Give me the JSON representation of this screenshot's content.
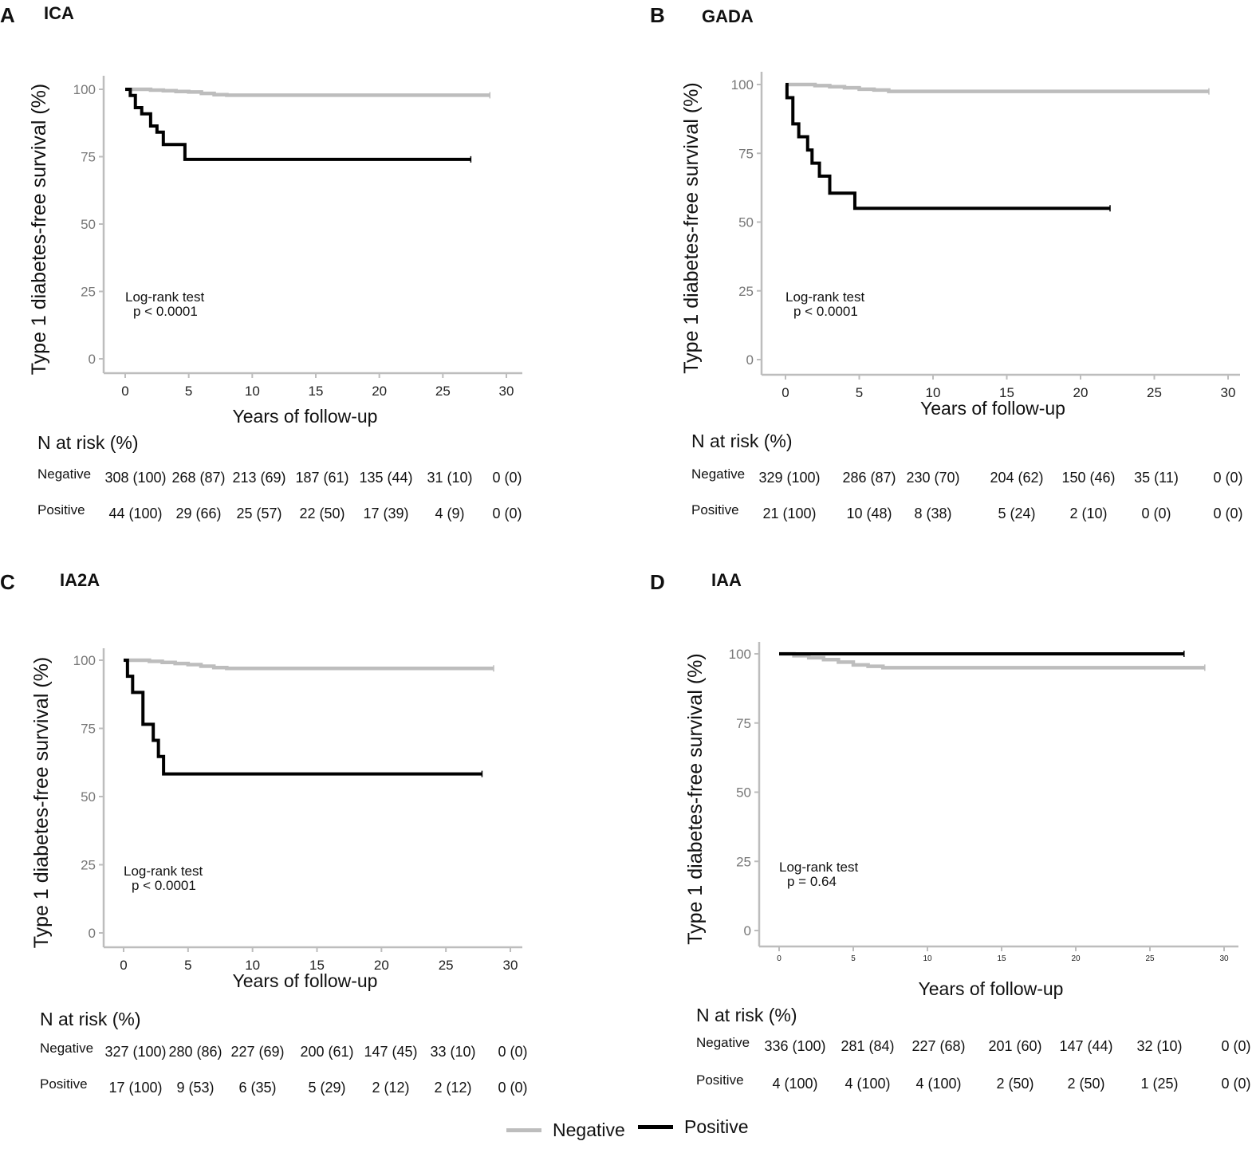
{
  "colors": {
    "negative": "#bdbdbd",
    "positive": "#000000",
    "axis": "#bdbdbd"
  },
  "legend": {
    "negative_label": "Negative",
    "positive_label": "Positive"
  },
  "chart_data": [
    {
      "type": "line",
      "panel": "A",
      "title": "ICA",
      "ylabel": "Type 1 diabetes-free survival (%)",
      "xlabel": "Years of follow-up",
      "xlim": [
        0,
        30
      ],
      "ylim": [
        0,
        100
      ],
      "x_ticks": [
        "0",
        "5",
        "10",
        "15",
        "20",
        "25",
        "30"
      ],
      "y_ticks": [
        "0",
        "25",
        "50",
        "75",
        "100"
      ],
      "annotation": [
        "Log-rank test",
        "p < 0.0001"
      ],
      "series": [
        {
          "name": "Negative",
          "x": [
            0,
            1,
            2,
            3,
            4,
            5,
            6,
            7,
            8,
            10,
            15,
            20,
            25,
            28.7
          ],
          "y": [
            100,
            100,
            99.7,
            99.5,
            99.2,
            99,
            98.5,
            98,
            97.8,
            97.8,
            97.8,
            97.8,
            97.8,
            97.8
          ]
        },
        {
          "name": "Positive",
          "x": [
            0,
            0.4,
            0.8,
            1.3,
            2.0,
            2.5,
            3.0,
            4.7,
            27.2
          ],
          "y": [
            100,
            97.7,
            93.2,
            90.9,
            86.4,
            84.1,
            79.5,
            74.0,
            74.0
          ]
        }
      ],
      "risk_table": {
        "title": "N at risk (%)",
        "rows": [
          {
            "label": "Negative",
            "values": [
              "308 (100)",
              "268 (87)",
              "213 (69)",
              "187 (61)",
              "135 (44)",
              "31 (10)",
              "0 (0)"
            ]
          },
          {
            "label": "Positive",
            "values": [
              "44 (100)",
              "29 (66)",
              "25 (57)",
              "22 (50)",
              "17 (39)",
              "4 (9)",
              "0 (0)"
            ]
          }
        ]
      }
    },
    {
      "type": "line",
      "panel": "B",
      "title": "GADA",
      "ylabel": "Type 1 diabetes-free survival (%)",
      "xlabel": "Years of follow-up",
      "xlim": [
        0,
        30
      ],
      "ylim": [
        0,
        100
      ],
      "x_ticks": [
        "0",
        "5",
        "10",
        "15",
        "20",
        "25",
        "30"
      ],
      "y_ticks": [
        "0",
        "25",
        "50",
        "75",
        "100"
      ],
      "annotation": [
        "Log-rank test",
        "p < 0.0001"
      ],
      "series": [
        {
          "name": "Negative",
          "x": [
            0,
            1,
            2,
            3,
            4,
            5,
            6,
            7,
            10,
            15,
            20,
            25,
            28.7
          ],
          "y": [
            100,
            100,
            99.6,
            99.2,
            98.8,
            98.3,
            98,
            97.5,
            97.5,
            97.5,
            97.5,
            97.5,
            97.5
          ]
        },
        {
          "name": "Positive",
          "x": [
            0,
            0.1,
            0.5,
            0.9,
            1.5,
            1.8,
            2.3,
            3.0,
            4.7,
            22.0
          ],
          "y": [
            100,
            95.2,
            85.7,
            81.0,
            76.2,
            71.4,
            66.7,
            60.5,
            55.0,
            55.0
          ]
        }
      ],
      "risk_table": {
        "title": "N at risk (%)",
        "rows": [
          {
            "label": "Negative",
            "values": [
              "329 (100)",
              "286 (87)",
              "230 (70)",
              "204 (62)",
              "150 (46)",
              "35 (11)",
              "0 (0)"
            ]
          },
          {
            "label": "Positive",
            "values": [
              "21 (100)",
              "10 (48)",
              "8 (38)",
              "5 (24)",
              "2 (10)",
              "0 (0)",
              "0 (0)"
            ]
          }
        ]
      }
    },
    {
      "type": "line",
      "panel": "C",
      "title": "IA2A",
      "ylabel": "Type 1 diabetes-free survival (%)",
      "xlabel": "Years of follow-up",
      "xlim": [
        0,
        30
      ],
      "ylim": [
        0,
        100
      ],
      "x_ticks": [
        "0",
        "5",
        "10",
        "15",
        "20",
        "25",
        "30"
      ],
      "y_ticks": [
        "0",
        "25",
        "50",
        "75",
        "100"
      ],
      "annotation": [
        "Log-rank test",
        "p < 0.0001"
      ],
      "series": [
        {
          "name": "Negative",
          "x": [
            0,
            1,
            2,
            3,
            4,
            5,
            6,
            7,
            8,
            10,
            15,
            20,
            25,
            28.7
          ],
          "y": [
            100,
            100,
            99.6,
            99.2,
            98.8,
            98.4,
            97.8,
            97.3,
            97,
            97,
            97,
            97,
            97,
            97
          ]
        },
        {
          "name": "Positive",
          "x": [
            0,
            0.3,
            0.7,
            1.5,
            2.3,
            2.7,
            3.1,
            27.8
          ],
          "y": [
            100,
            94.1,
            88.2,
            76.5,
            70.6,
            64.7,
            58.3,
            58.3
          ]
        }
      ],
      "risk_table": {
        "title": "N at risk (%)",
        "rows": [
          {
            "label": "Negative",
            "values": [
              "327 (100)",
              "280 (86)",
              "227 (69)",
              "200 (61)",
              "147 (45)",
              "33 (10)",
              "0 (0)"
            ]
          },
          {
            "label": "Positive",
            "values": [
              "17 (100)",
              "9 (53)",
              "6 (35)",
              "5 (29)",
              "2 (12)",
              "2 (12)",
              "0 (0)"
            ]
          }
        ]
      }
    },
    {
      "type": "line",
      "panel": "D",
      "title": "IAA",
      "ylabel": "Type 1 diabetes-free survival (%)",
      "xlabel": "Years of follow-up",
      "xlim": [
        0,
        30
      ],
      "ylim": [
        0,
        100
      ],
      "x_ticks": [
        "0",
        "5",
        "10",
        "15",
        "20",
        "25",
        "30"
      ],
      "y_ticks": [
        "0",
        "25",
        "50",
        "75",
        "100"
      ],
      "annotation": [
        "Log-rank test",
        "p = 0.64"
      ],
      "series": [
        {
          "name": "Negative",
          "x": [
            0,
            1,
            2,
            3,
            4,
            5,
            6,
            7,
            10,
            15,
            20,
            25,
            28.7
          ],
          "y": [
            100,
            99.3,
            98.6,
            97.9,
            97.0,
            96.0,
            95.5,
            95.0,
            95.0,
            95.0,
            95.0,
            95.0,
            95.0
          ]
        },
        {
          "name": "Positive",
          "x": [
            0,
            27.3
          ],
          "y": [
            100,
            100
          ]
        }
      ],
      "risk_table": {
        "title": "N at risk (%)",
        "rows": [
          {
            "label": "Negative",
            "values": [
              "336 (100)",
              "281 (84)",
              "227 (68)",
              "201 (60)",
              "147 (44)",
              "32 (10)",
              "0 (0)"
            ]
          },
          {
            "label": "Positive",
            "values": [
              "4 (100)",
              "4 (100)",
              "4 (100)",
              "2 (50)",
              "2 (50)",
              "1 (25)",
              "0 (0)"
            ]
          }
        ]
      }
    }
  ]
}
